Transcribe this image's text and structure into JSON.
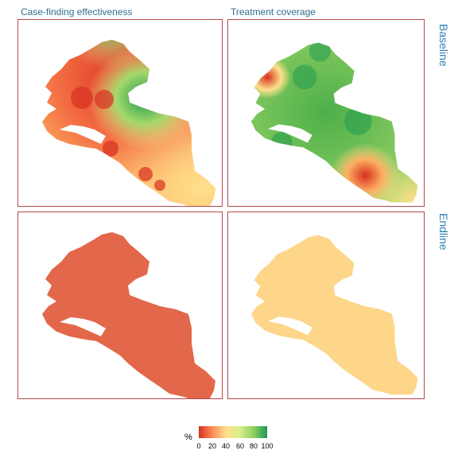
{
  "columns": [
    "Case-finding effectiveness",
    "Treatment coverage"
  ],
  "rows": [
    "Baseline",
    "Endline"
  ],
  "legend": {
    "label": "%",
    "ticks": [
      "0",
      "20",
      "40",
      "60",
      "80",
      "100"
    ],
    "scale": [
      "#d7301f",
      "#fc8d59",
      "#fee08b",
      "#d9ef8b",
      "#91cf60",
      "#1a9850"
    ]
  },
  "panels": [
    {
      "row": "Baseline",
      "column": "Case-finding effectiveness",
      "fill": "gradient-orange-red-with-green-hotspot"
    },
    {
      "row": "Baseline",
      "column": "Treatment coverage",
      "fill": "gradient-green-with-red-hotspots"
    },
    {
      "row": "Endline",
      "column": "Case-finding effectiveness",
      "fill": "#e3674a"
    },
    {
      "row": "Endline",
      "column": "Treatment coverage",
      "fill": "#fdd68a"
    }
  ],
  "colors": {
    "panel_border": "#b5474b",
    "title_color": "#2f6f8f"
  }
}
